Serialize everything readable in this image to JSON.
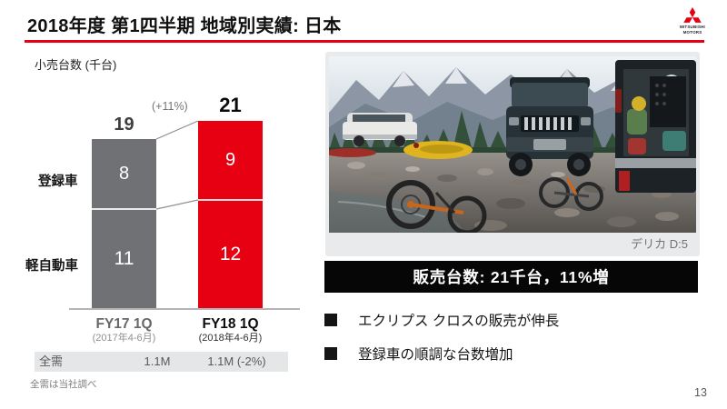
{
  "slide": {
    "title": "2018年度 第1四半期 地域別実績: 日本",
    "page_number": "13",
    "accent_color": "#E60012",
    "brand": {
      "name": "MITSUBISHI MOTORS",
      "line1": "MITSUBISHI",
      "line2": "MOTORS"
    }
  },
  "chart_data": {
    "type": "bar",
    "stacked": true,
    "title": "小売台数 (千台)",
    "categories": [
      "FY17 1Q",
      "FY18 1Q"
    ],
    "category_subtitles": [
      "(2017年4-6月)",
      "(2018年4-6月)"
    ],
    "series": [
      {
        "name": "登録車",
        "values": [
          8,
          9
        ]
      },
      {
        "name": "軽自動車",
        "values": [
          11,
          12
        ]
      }
    ],
    "totals": [
      19,
      21
    ],
    "growth_label": "(+11%)",
    "bar_colors": [
      "#707175",
      "#E60012"
    ],
    "ylim": [
      0,
      21
    ],
    "legend_position": "left-axis-labels",
    "total_demand": {
      "label": "全需",
      "values": [
        "1.1M",
        "1.1M (-2%)"
      ]
    },
    "footnote": "全需は当社調べ"
  },
  "photo": {
    "caption": "デリカ D:5"
  },
  "banner": {
    "text": "販売台数: 21千台，11%増",
    "bg": "#000000"
  },
  "bullets": [
    {
      "text": "エクリプス クロスの販売が伸長"
    },
    {
      "text": "登録車の順調な台数増加"
    }
  ]
}
